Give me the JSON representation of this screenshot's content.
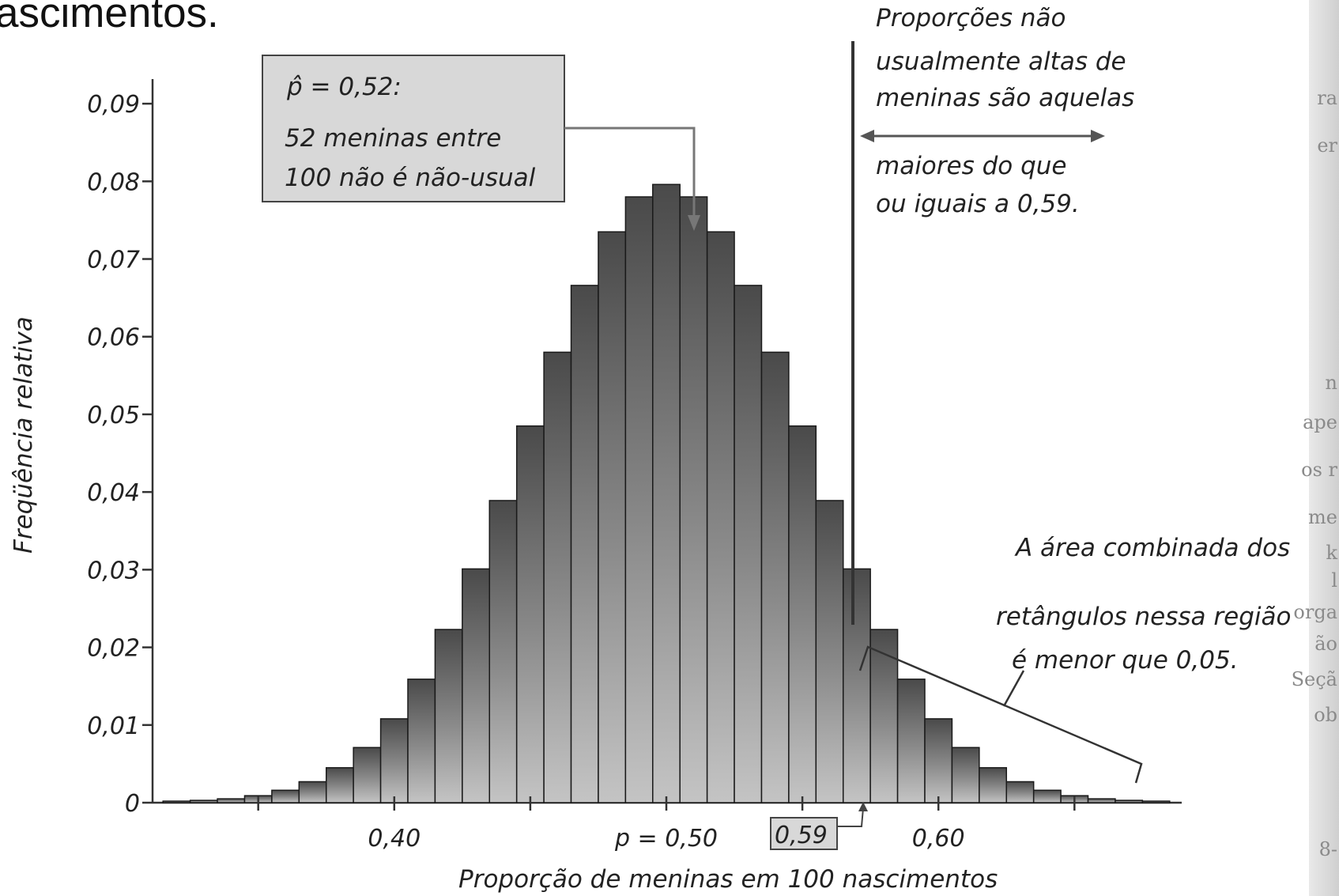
{
  "heading_fragment": "ascimentos.",
  "chart_data": {
    "type": "bar",
    "xlabel": "Proporção de meninas em 100 nascimentos",
    "ylabel": "Freqüência relativa",
    "xlim": [
      0.31,
      0.69
    ],
    "ylim": [
      0,
      0.095
    ],
    "bin_width": 0.01,
    "y_ticks": [
      "0",
      "0,01",
      "0,02",
      "0,03",
      "0,04",
      "0,05",
      "0,06",
      "0,07",
      "0,08",
      "0,09"
    ],
    "y_tick_values": [
      0,
      0.01,
      0.02,
      0.03,
      0.04,
      0.05,
      0.06,
      0.07,
      0.08,
      0.09
    ],
    "x_ticks": [
      "0,40",
      "p = 0,50",
      "0,60"
    ],
    "x_tick_values": [
      0.4,
      0.5,
      0.6
    ],
    "categories": [
      0.32,
      0.33,
      0.34,
      0.35,
      0.36,
      0.37,
      0.38,
      0.39,
      0.4,
      0.41,
      0.42,
      0.43,
      0.44,
      0.45,
      0.46,
      0.47,
      0.48,
      0.49,
      0.5,
      0.51,
      0.52,
      0.53,
      0.54,
      0.55,
      0.56,
      0.57,
      0.58,
      0.59,
      0.6,
      0.61,
      0.62,
      0.63,
      0.64,
      0.65,
      0.66,
      0.67,
      0.68
    ],
    "values": [
      0.0002,
      0.0003,
      0.0005,
      0.0009,
      0.0016,
      0.0027,
      0.0045,
      0.0071,
      0.0108,
      0.0159,
      0.0223,
      0.0301,
      0.0389,
      0.0485,
      0.058,
      0.0666,
      0.0735,
      0.078,
      0.0796,
      0.078,
      0.0735,
      0.0666,
      0.058,
      0.0485,
      0.0389,
      0.0301,
      0.0223,
      0.0159,
      0.0108,
      0.0071,
      0.0045,
      0.0027,
      0.0016,
      0.0009,
      0.0005,
      0.0003,
      0.0002
    ]
  },
  "callout": {
    "formula": "p̂ = 0,52:",
    "line1": "52 meninas entre",
    "line2": "100 não é não-usual"
  },
  "note_top": {
    "line1": "Proporções não",
    "line2": "usualmente altas de",
    "line3": "meninas são aquelas",
    "line4": "maiores do que",
    "line5": "ou iguais a 0,59."
  },
  "note_area": {
    "line1": "A área combinada dos",
    "line2": "retângulos nessa região",
    "line3": "é menor que 0,05."
  },
  "marker_label": "0,59",
  "page_edge_text": [
    "ra",
    "er",
    "n",
    "ape",
    "os r",
    "me",
    "k",
    "l",
    "orga",
    "ão",
    "Seçã",
    "ob",
    "8-"
  ],
  "colors": {
    "bar_dark": "#555555",
    "bar_light": "#b9b9b9",
    "callout_fill": "#d8d8d8"
  }
}
